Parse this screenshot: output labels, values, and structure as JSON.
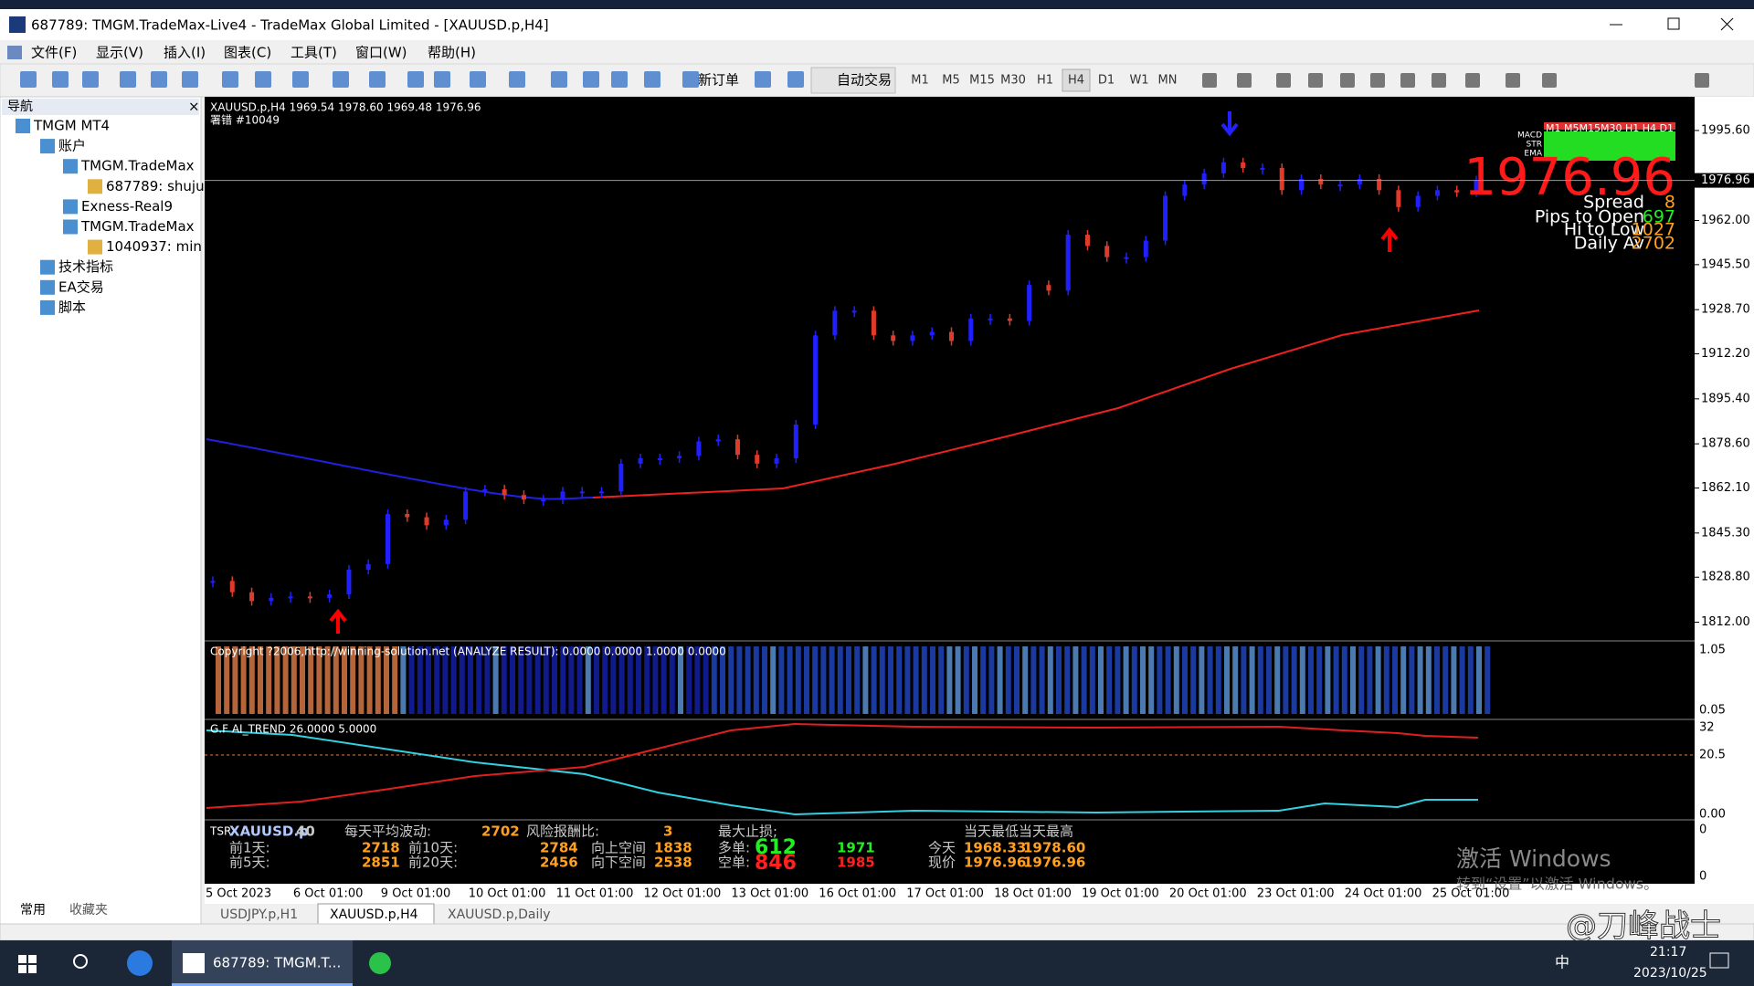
{
  "window": {
    "title": "687789: TMGM.TradeMax-Live4 - TradeMax Global Limited - [XAUUSD.p,H4]"
  },
  "menu": [
    "文件(F)",
    "显示(V)",
    "插入(I)",
    "图表(C)",
    "工具(T)",
    "窗口(W)",
    "帮助(H)"
  ],
  "toolbar": {
    "new_order": "新订单",
    "auto_trade": "自动交易",
    "timeframes": [
      "M1",
      "M5",
      "M15",
      "M30",
      "H1",
      "H4",
      "D1",
      "W1",
      "MN"
    ]
  },
  "navigator": {
    "title": "导航",
    "items": [
      "TMGM MT4",
      "账户",
      "TMGM.TradeMax",
      "687789: shuju",
      "Exness-Real9",
      "TMGM.TradeMax",
      "1040937: min",
      "技术指标",
      "EA交易",
      "脚本"
    ],
    "tabs": [
      "常用",
      "收藏夹"
    ]
  },
  "chart_data": {
    "type": "candlestick",
    "title": "XAUUSD.p,H4  1969.54 1978.60 1969.48 1976.96",
    "subtitle": "署错   #10049",
    "close": [
      1827.4,
      1823.2,
      1819.9,
      1821.1,
      1821.6,
      1821.1,
      1822.4,
      1831.6,
      1833.7,
      1852.4,
      1851.2,
      1848.2,
      1850.3,
      1860.8,
      1861.6,
      1859.5,
      1857.8,
      1857.8,
      1860.8,
      1860.8,
      1860.8,
      1871.2,
      1873.2,
      1873.2,
      1874.1,
      1879.5,
      1880.3,
      1874.5,
      1871.2,
      1873.2,
      1885.8,
      1919.1,
      1928.3,
      1928.3,
      1919.1,
      1917.0,
      1919.1,
      1920.4,
      1917.0,
      1925.4,
      1925.4,
      1924.5,
      1937.9,
      1935.8,
      1956.7,
      1952.5,
      1948.3,
      1948.3,
      1954.5,
      1971.2,
      1975.4,
      1979.6,
      1983.7,
      1981.6,
      1981.6,
      1973.3,
      1977.5,
      1975.4,
      1975.4,
      1977.5,
      1973.3,
      1967.0,
      1971.2,
      1973.3,
      1972.5,
      1976.96
    ],
    "ylim": [
      1805.7,
      2007.5
    ],
    "yticks": [
      {
        "value": 1995.6,
        "label": "1995.60"
      },
      {
        "value": 1962.0,
        "label": "1962.00"
      },
      {
        "value": 1945.5,
        "label": "1945.50"
      },
      {
        "value": 1928.7,
        "label": "1928.70"
      },
      {
        "value": 1912.2,
        "label": "1912.20"
      },
      {
        "value": 1895.4,
        "label": "1895.40"
      },
      {
        "value": 1878.6,
        "label": "1878.60"
      },
      {
        "value": 1862.1,
        "label": "1862.10"
      },
      {
        "value": 1845.3,
        "label": "1845.30"
      },
      {
        "value": 1828.8,
        "label": "1828.80"
      },
      {
        "value": 1812.0,
        "label": "1812.00"
      }
    ],
    "current_price": {
      "value": 1976.96,
      "label": "1976.96"
    },
    "dates": [
      "5 Oct 2023",
      "6 Oct 01:00",
      "9 Oct 01:00",
      "10 Oct 01:00",
      "11 Oct 01:00",
      "12 Oct 01:00",
      "13 Oct 01:00",
      "16 Oct 01:00",
      "17 Oct 01:00",
      "18 Oct 01:00",
      "19 Oct 01:00",
      "20 Oct 01:00",
      "23 Oct 01:00",
      "24 Oct 01:00",
      "25 Oct 01:00"
    ],
    "color_up": "#2020ff",
    "color_down": "#e03a2a"
  },
  "panel": {
    "timeframes": "M1 M5M15M30 H1  H4  D1",
    "rows": [
      "MACD",
      "STR",
      "EMA"
    ],
    "price": "1976.96",
    "spread_label": "Spread",
    "spread": "8",
    "pips_label": "Pips to Open",
    "pips": "697",
    "hilo_label": "Hi to Low",
    "hilo": "1027",
    "daily_label": "Daily Av",
    "daily": "2702"
  },
  "indicators": {
    "analyze": "Copyright ?2006,http://winning-solution.net (ANALYZE RESULT): 0.0000 0.0000 1.0000 0.0000",
    "analyze_scale": [
      "1.05",
      "0.05"
    ],
    "trend": "G.F AI_TREND 26.0000 5.0000",
    "trend_scale": [
      "32",
      "20.5",
      "0.00"
    ],
    "tsr_scale": [
      "0",
      "0"
    ]
  },
  "tsr": {
    "name": "TSR",
    "symbol": "XAUUSD.p",
    "period": "40",
    "avg_label": "每天平均波动:",
    "avg": "2702",
    "rr_label": "风险报酬比:",
    "rr": "3",
    "sl_label": "最大止损;",
    "day_label": "当天最低当天最高",
    "d1_label": "前1天:",
    "d1": "2718",
    "d10_label": "前10天:",
    "d10": "2784",
    "up_label": "向上空间",
    "up": "1838",
    "long_label": "多单:",
    "long": "612",
    "long2": "1971",
    "today_label": "今天",
    "today_low": "1968.33",
    "today_high": "1978.60",
    "d5_label": "前5天:",
    "d5": "2851",
    "d20_label": "前20天:",
    "d20": "2456",
    "down_label": "向下空间",
    "down": "2538",
    "short_label": "空单:",
    "short": "846",
    "short2": "1985",
    "now_label": "现价",
    "now1": "1976.96",
    "now2": "1976.96"
  },
  "tabs": [
    "USDJPY.p,H1",
    "XAUUSD.p,H4",
    "XAUUSD.p,Daily"
  ],
  "watermark": [
    "激活 Windows",
    "转到“设置”以激活 Windows。"
  ],
  "taskbar": {
    "app": "687789: TMGM.T...",
    "ime": "中",
    "time": "21:17",
    "date": "2023/10/25",
    "brand": "@刀峰战士"
  }
}
